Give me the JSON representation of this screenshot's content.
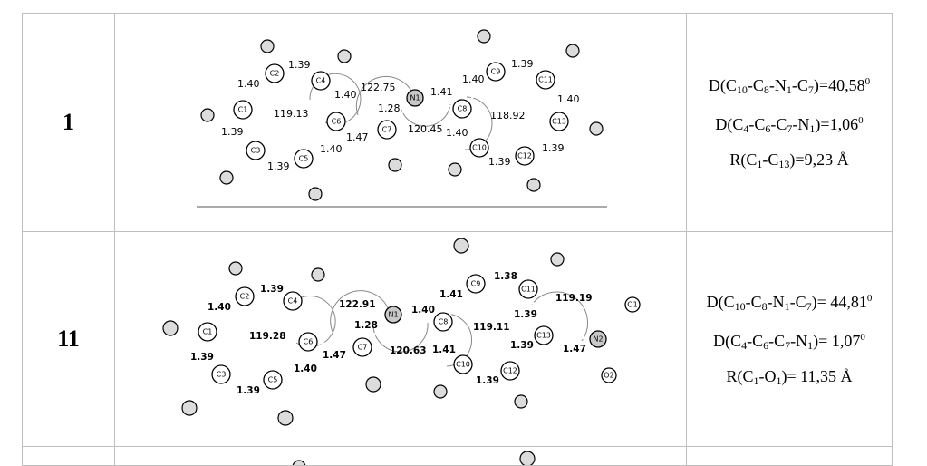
{
  "rows": [
    {
      "label": "1",
      "molecule": {
        "atoms": [
          "C1",
          "C2",
          "C3",
          "C4",
          "C5",
          "C6",
          "C7",
          "N1",
          "C8",
          "C9",
          "C10",
          "C11",
          "C12",
          "C13"
        ],
        "bond_lengths": [
          "1.39",
          "1.40",
          "1.39",
          "1.39",
          "1.40",
          "1.40",
          "1.47",
          "1.28",
          "1.41",
          "1.40",
          "1.39",
          "1.40",
          "1.40",
          "1.39",
          "1.39"
        ],
        "angles": [
          "119.13",
          "122.75",
          "120.45",
          "118.92"
        ]
      },
      "params": [
        {
          "head": "D(C",
          "subs": [
            "10",
            "8",
            "1",
            "7"
          ],
          "mids": [
            "-C",
            "-N",
            "-C"
          ],
          "tail": ")=40,58",
          "sup": "0"
        },
        {
          "head": "D(C",
          "subs": [
            "4",
            "6",
            "7",
            "1"
          ],
          "mids": [
            "-C",
            "-C",
            "-N"
          ],
          "tail": ")=1,06",
          "sup": "0"
        },
        {
          "head": "R(C",
          "subs": [
            "1",
            "13"
          ],
          "mids": [
            "-C"
          ],
          "tail": ")=9,23 Å",
          "sup": ""
        }
      ]
    },
    {
      "label": "11",
      "molecule": {
        "atoms": [
          "C1",
          "C2",
          "C3",
          "C4",
          "C5",
          "C6",
          "C7",
          "N1",
          "C8",
          "C9",
          "C10",
          "C11",
          "C12",
          "C13",
          "N2",
          "O1",
          "O2"
        ],
        "bond_lengths": [
          "1.39",
          "1.40",
          "1.39",
          "1.39",
          "1.40",
          "1.47",
          "1.28",
          "1.40",
          "1.41",
          "1.41",
          "1.38",
          "1.39",
          "1.39",
          "1.39",
          "1.47"
        ],
        "angles": [
          "119.28",
          "122.91",
          "120.63",
          "119.11",
          "119.19"
        ]
      },
      "params": [
        {
          "head": "D(C",
          "subs": [
            "10",
            "8",
            "1",
            "7"
          ],
          "mids": [
            "-C",
            "-N",
            "-C"
          ],
          "tail": ")= 44,81",
          "sup": "0"
        },
        {
          "head": "D(C",
          "subs": [
            "4",
            "6",
            "7",
            "1"
          ],
          "mids": [
            "-C",
            "-C",
            "-N"
          ],
          "tail": ")= 1,07",
          "sup": "0"
        },
        {
          "head": "R(C",
          "subs": [
            "1",
            "1"
          ],
          "mids": [
            "-O"
          ],
          "tail": ")= 11,35 Å",
          "sup": ""
        }
      ]
    }
  ]
}
